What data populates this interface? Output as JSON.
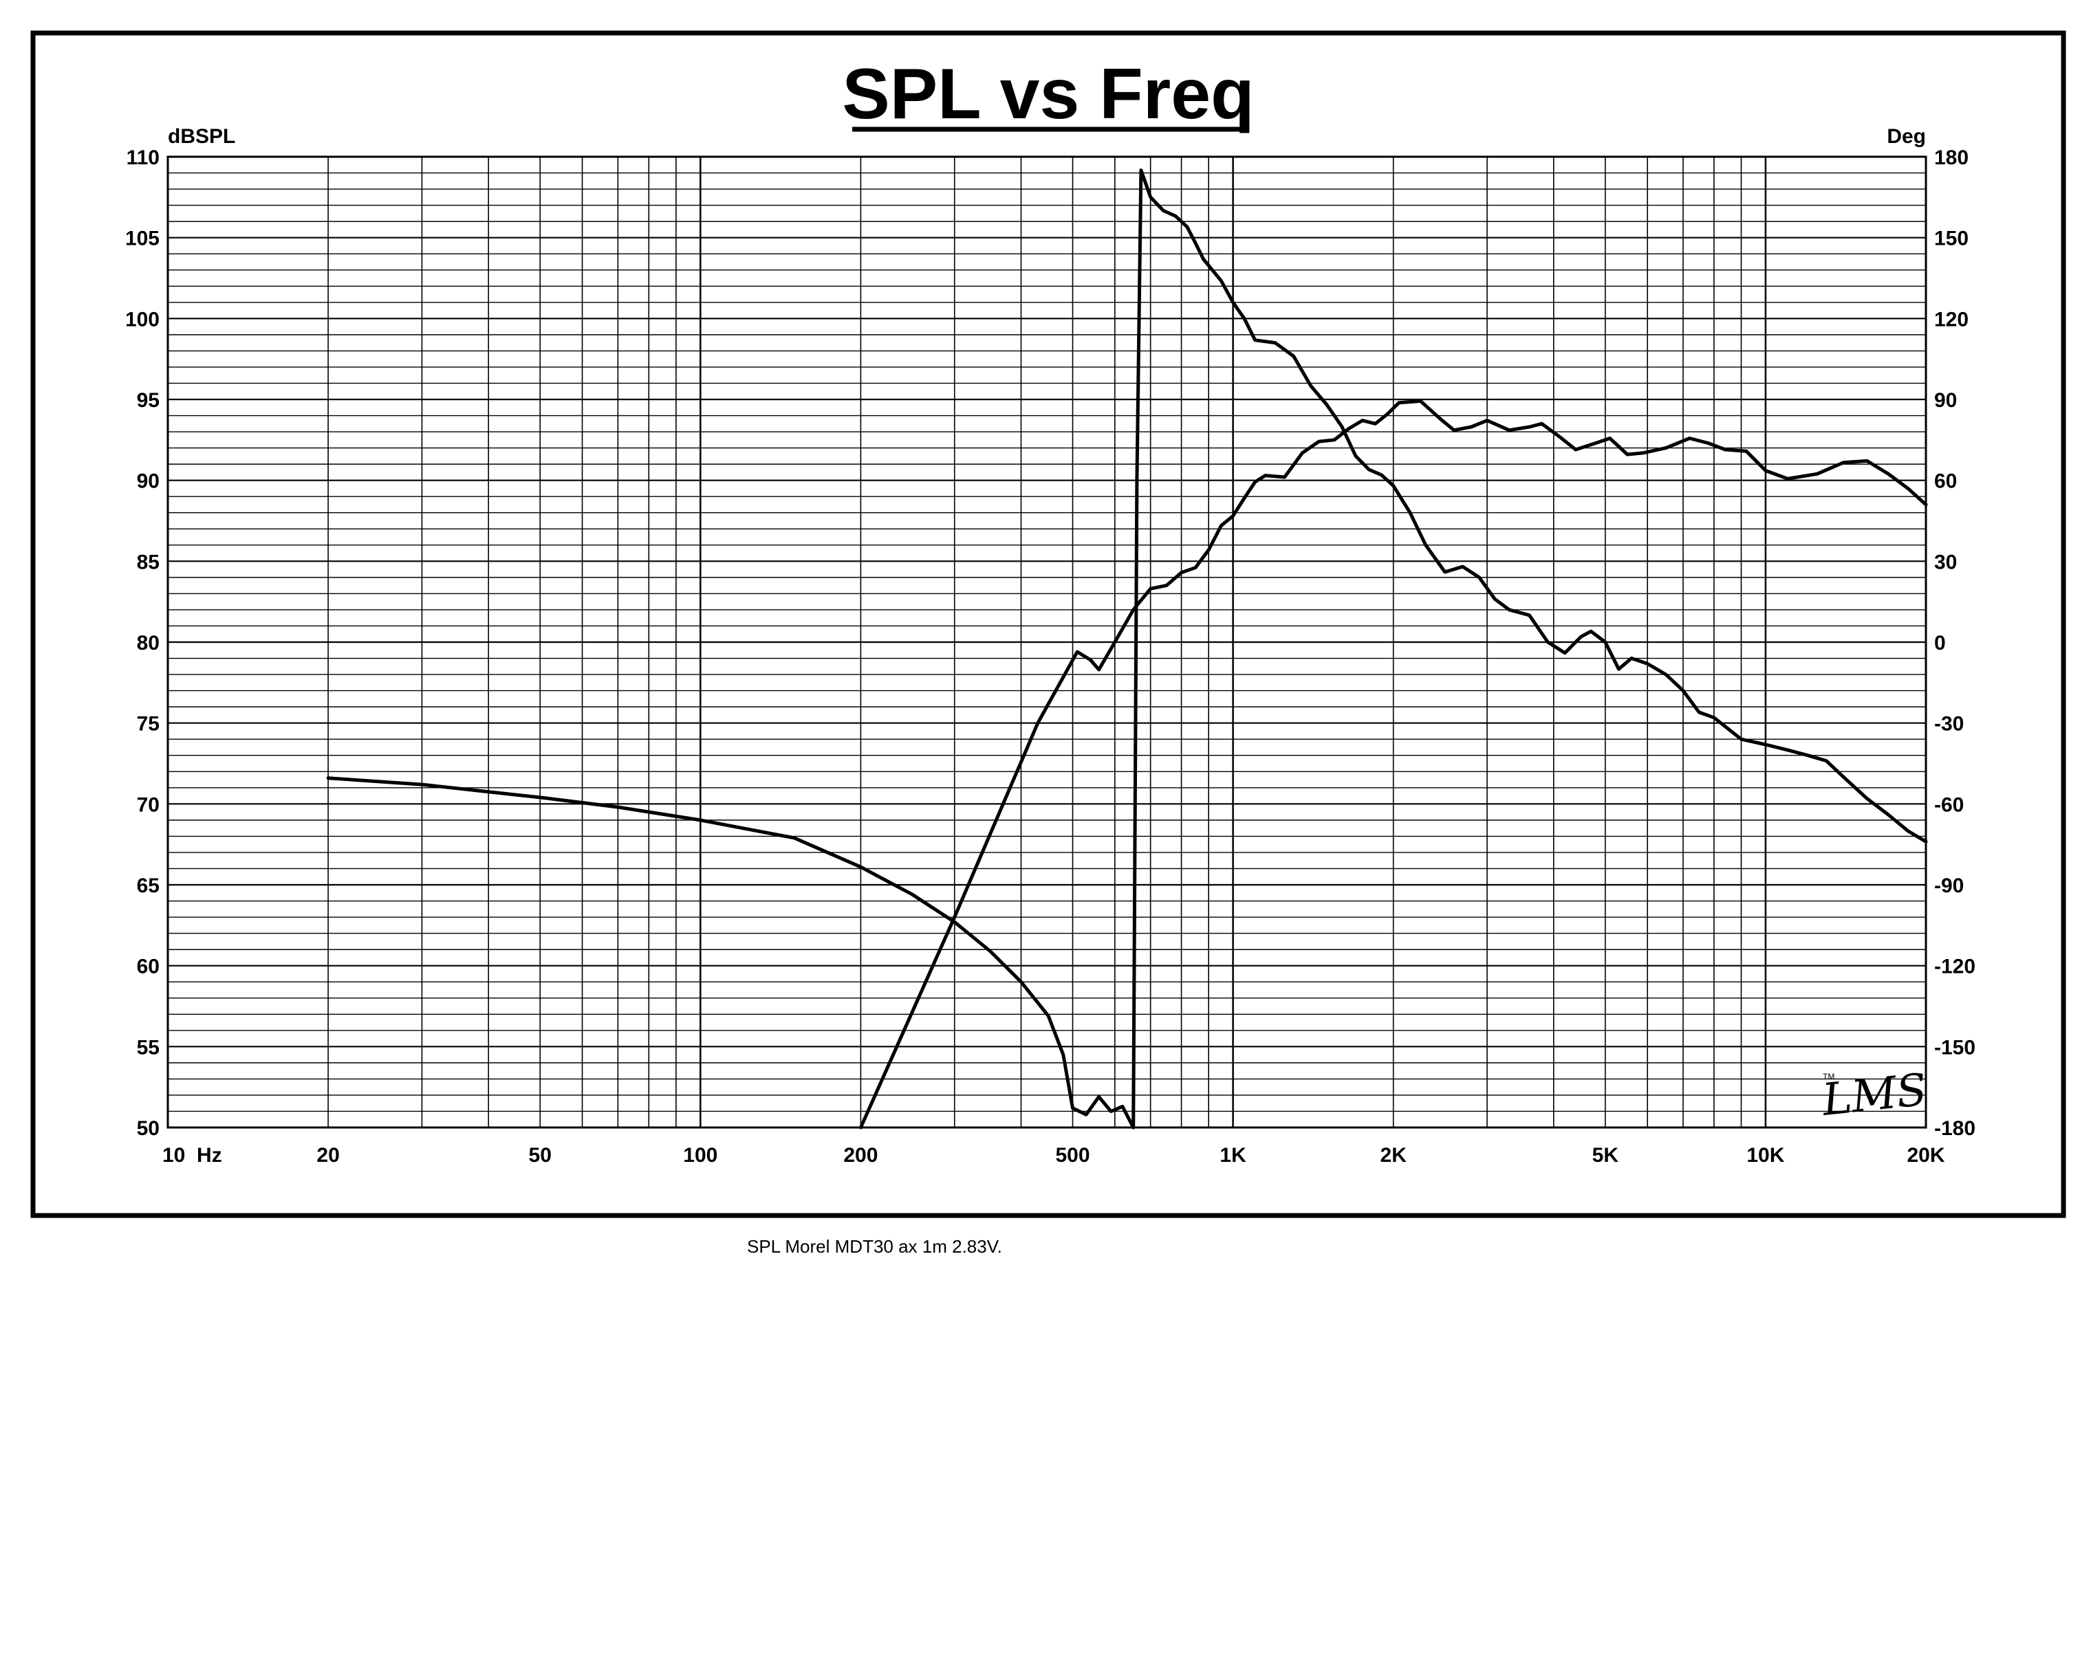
{
  "chart_data": {
    "type": "line",
    "title": "SPL vs Freq",
    "caption": "SPL Morel MDT30 ax 1m 2.83V.",
    "logo": "LMS",
    "x_scale": "log",
    "xlim": [
      10,
      20000
    ],
    "x_ticks": [
      {
        "value": 10,
        "label": "10  Hz"
      },
      {
        "value": 20,
        "label": "20"
      },
      {
        "value": 50,
        "label": "50"
      },
      {
        "value": 100,
        "label": "100"
      },
      {
        "value": 200,
        "label": "200"
      },
      {
        "value": 500,
        "label": "500"
      },
      {
        "value": 1000,
        "label": "1K"
      },
      {
        "value": 2000,
        "label": "2K"
      },
      {
        "value": 5000,
        "label": "5K"
      },
      {
        "value": 10000,
        "label": "10K"
      },
      {
        "value": 20000,
        "label": "20K"
      }
    ],
    "y_left": {
      "label": "dBSPL",
      "lim": [
        50,
        110
      ],
      "ticks": [
        110,
        105,
        100,
        95,
        90,
        85,
        80,
        75,
        70,
        65,
        60,
        55,
        50
      ]
    },
    "y_right": {
      "label": "Deg",
      "lim": [
        -180,
        180
      ],
      "ticks": [
        180,
        150,
        120,
        90,
        60,
        30,
        0,
        -30,
        -60,
        -90,
        -120,
        -150,
        -180
      ]
    },
    "grid": true,
    "legend": "none",
    "series": [
      {
        "axis": "left",
        "points": [
          [
            200,
            50
          ],
          [
            300,
            63
          ],
          [
            430,
            75
          ],
          [
            510,
            79.4
          ],
          [
            540,
            78.9
          ],
          [
            560,
            78.3
          ],
          [
            600,
            80
          ],
          [
            650,
            82
          ],
          [
            700,
            83.3
          ],
          [
            750,
            83.5
          ],
          [
            800,
            84.3
          ],
          [
            850,
            84.6
          ],
          [
            900,
            85.7
          ],
          [
            950,
            87.2
          ],
          [
            1000,
            87.8
          ],
          [
            1050,
            88.9
          ],
          [
            1100,
            89.9
          ],
          [
            1150,
            90.3
          ],
          [
            1250,
            90.2
          ],
          [
            1350,
            91.7
          ],
          [
            1450,
            92.4
          ],
          [
            1550,
            92.5
          ],
          [
            1650,
            93.2
          ],
          [
            1750,
            93.7
          ],
          [
            1850,
            93.5
          ],
          [
            1950,
            94.1
          ],
          [
            2050,
            94.8
          ],
          [
            2250,
            94.9
          ],
          [
            2450,
            93.8
          ],
          [
            2600,
            93.1
          ],
          [
            2800,
            93.3
          ],
          [
            3000,
            93.7
          ],
          [
            3300,
            93.1
          ],
          [
            3600,
            93.3
          ],
          [
            3800,
            93.5
          ],
          [
            4100,
            92.7
          ],
          [
            4400,
            91.9
          ],
          [
            4800,
            92.3
          ],
          [
            5100,
            92.6
          ],
          [
            5500,
            91.6
          ],
          [
            5900,
            91.7
          ],
          [
            6500,
            92
          ],
          [
            7200,
            92.6
          ],
          [
            7800,
            92.3
          ],
          [
            8400,
            91.9
          ],
          [
            9200,
            91.8
          ],
          [
            10000,
            90.6
          ],
          [
            11000,
            90.1
          ],
          [
            12500,
            90.4
          ],
          [
            14000,
            91.1
          ],
          [
            15500,
            91.2
          ],
          [
            17000,
            90.4
          ],
          [
            18500,
            89.5
          ],
          [
            20000,
            88.5
          ]
        ]
      },
      {
        "axis": "left",
        "points": [
          [
            20,
            71.6
          ],
          [
            30,
            71.2
          ],
          [
            50,
            70.4
          ],
          [
            70,
            69.8
          ],
          [
            100,
            69
          ],
          [
            150,
            67.9
          ],
          [
            200,
            66.1
          ],
          [
            250,
            64.4
          ],
          [
            300,
            62.7
          ],
          [
            350,
            60.9
          ],
          [
            400,
            59
          ],
          [
            450,
            56.9
          ],
          [
            480,
            54.5
          ],
          [
            500,
            51.2
          ],
          [
            530,
            50.8
          ],
          [
            560,
            51.9
          ],
          [
            590,
            51
          ],
          [
            620,
            51.3
          ],
          [
            650,
            50
          ]
        ]
      },
      {
        "axis": "right",
        "points": [
          [
            650,
            -180
          ],
          [
            660,
            60
          ],
          [
            672,
            175
          ],
          [
            700,
            165
          ],
          [
            740,
            160
          ],
          [
            780,
            158
          ],
          [
            820,
            154
          ],
          [
            850,
            148
          ],
          [
            880,
            142
          ],
          [
            950,
            134
          ],
          [
            1000,
            126
          ],
          [
            1050,
            120
          ],
          [
            1100,
            112
          ],
          [
            1200,
            111
          ],
          [
            1300,
            106
          ],
          [
            1400,
            95
          ],
          [
            1500,
            88
          ],
          [
            1600,
            80
          ],
          [
            1700,
            69
          ],
          [
            1800,
            64
          ],
          [
            1900,
            62
          ],
          [
            2000,
            58
          ],
          [
            2150,
            48
          ],
          [
            2300,
            36
          ],
          [
            2500,
            26
          ],
          [
            2700,
            28
          ],
          [
            2900,
            24
          ],
          [
            3100,
            16
          ],
          [
            3300,
            12
          ],
          [
            3600,
            10
          ],
          [
            3900,
            0
          ],
          [
            4200,
            -4
          ],
          [
            4500,
            2
          ],
          [
            4700,
            4
          ],
          [
            5000,
            0
          ],
          [
            5300,
            -10
          ],
          [
            5600,
            -6
          ],
          [
            6000,
            -8
          ],
          [
            6500,
            -12
          ],
          [
            7000,
            -18
          ],
          [
            7500,
            -26
          ],
          [
            8000,
            -28
          ],
          [
            9000,
            -36
          ],
          [
            10000,
            -38
          ],
          [
            11000,
            -40
          ],
          [
            12000,
            -42
          ],
          [
            13000,
            -44
          ],
          [
            14000,
            -50
          ],
          [
            15500,
            -58
          ],
          [
            17000,
            -64
          ],
          [
            18500,
            -70
          ],
          [
            20000,
            -74
          ]
        ]
      }
    ]
  }
}
